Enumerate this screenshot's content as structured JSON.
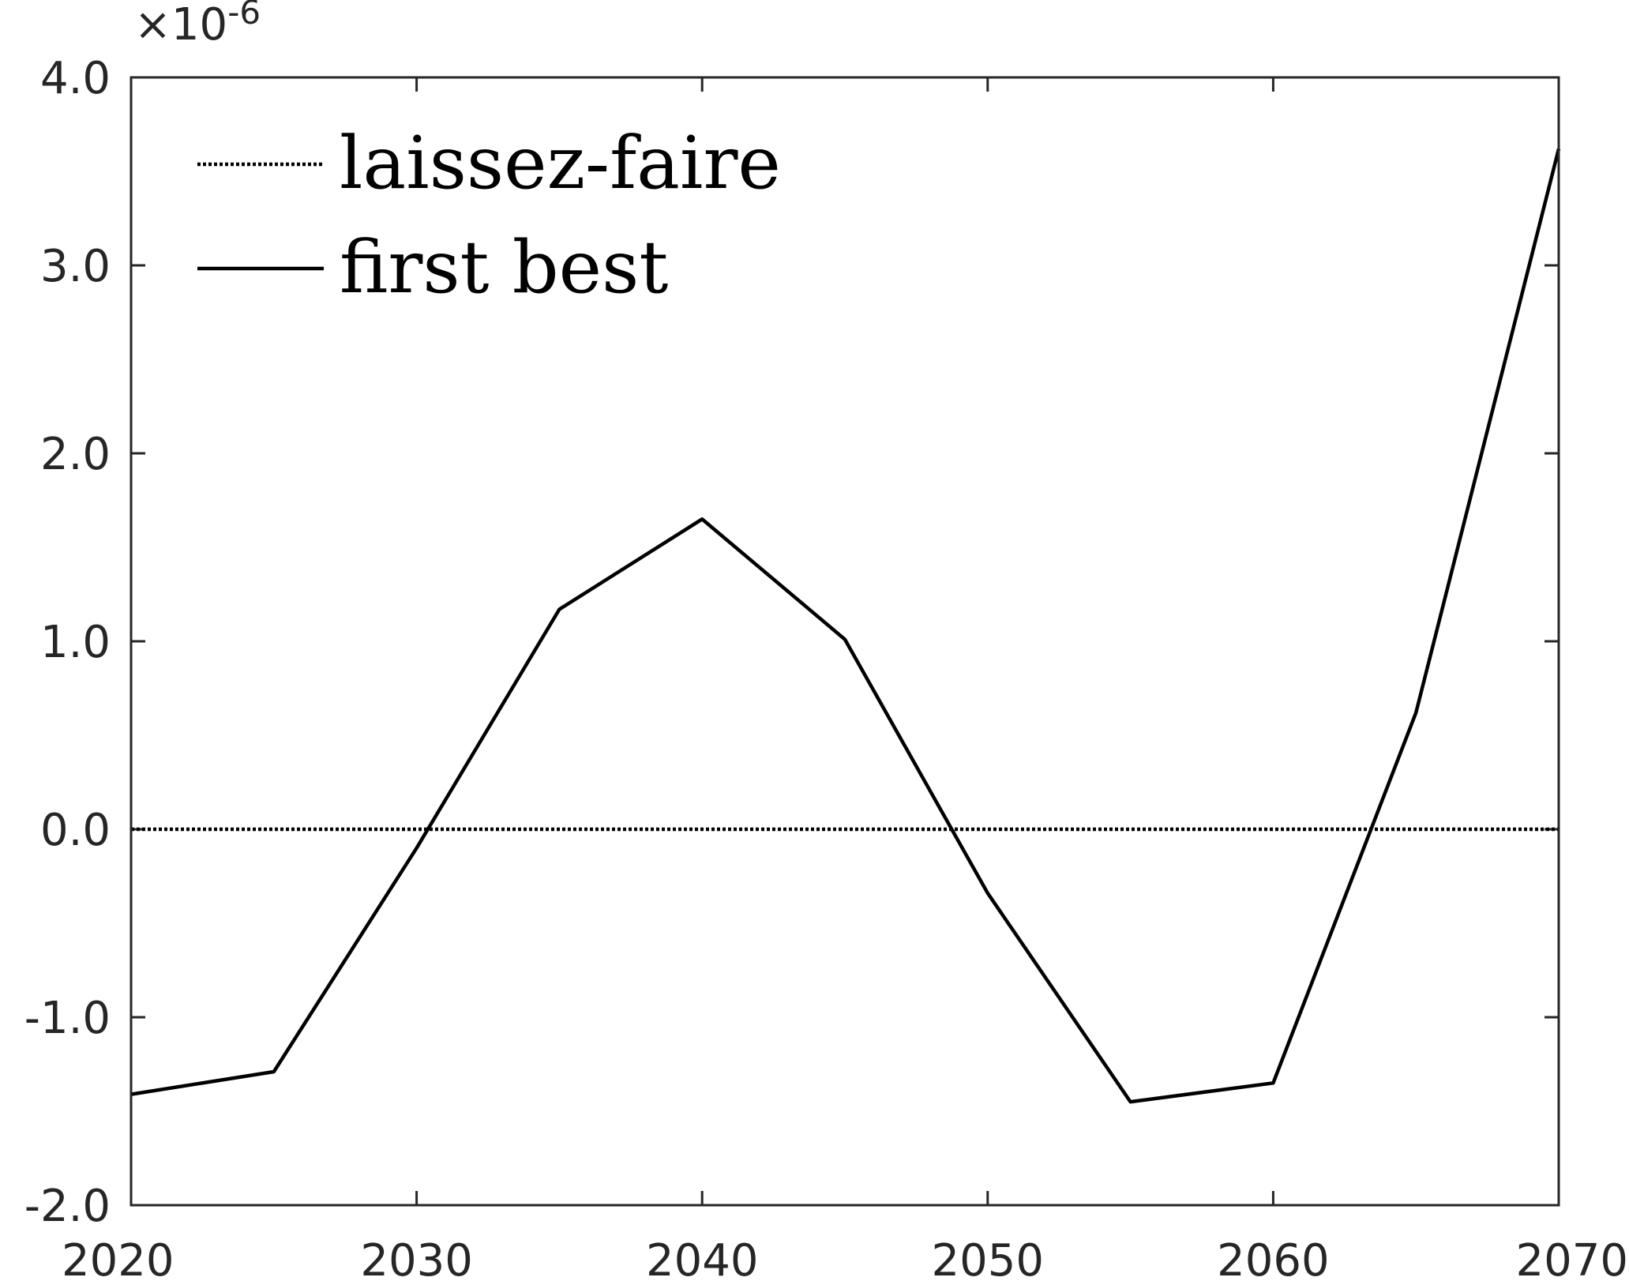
{
  "chart_data": {
    "type": "line",
    "title": "",
    "xlabel": "",
    "ylabel": "",
    "xlim": [
      2020,
      2070
    ],
    "ylim": [
      -2.0,
      4.0
    ],
    "x_ticks": [
      2020,
      2030,
      2040,
      2050,
      2060,
      2070
    ],
    "x_tick_labels": [
      "2020",
      "2030",
      "2040",
      "2050",
      "2060",
      "2070"
    ],
    "y_ticks": [
      -2.0,
      -1.0,
      0.0,
      1.0,
      2.0,
      3.0,
      4.0
    ],
    "y_tick_labels": [
      "-2.0",
      "-1.0",
      "0.0",
      "1.0",
      "2.0",
      "3.0",
      "4.0"
    ],
    "y_exponent": {
      "base": "×10",
      "power": "-6"
    },
    "grid": false,
    "legend_position": "top-left",
    "series": [
      {
        "name": "laissez-faire",
        "style": "dotted",
        "color": "#000000",
        "x": [
          2020,
          2025,
          2030,
          2035,
          2040,
          2045,
          2050,
          2055,
          2060,
          2065,
          2070
        ],
        "values": [
          0,
          0,
          0,
          0,
          0,
          0,
          0,
          0,
          0,
          0,
          0
        ]
      },
      {
        "name": "first best",
        "style": "solid",
        "color": "#000000",
        "x": [
          2020,
          2025,
          2030,
          2035,
          2040,
          2045,
          2050,
          2055,
          2060,
          2065,
          2070
        ],
        "values": [
          -1.41,
          -1.29,
          -0.1,
          1.17,
          1.65,
          1.01,
          -0.34,
          -1.45,
          -1.35,
          0.62,
          3.62
        ]
      }
    ]
  }
}
